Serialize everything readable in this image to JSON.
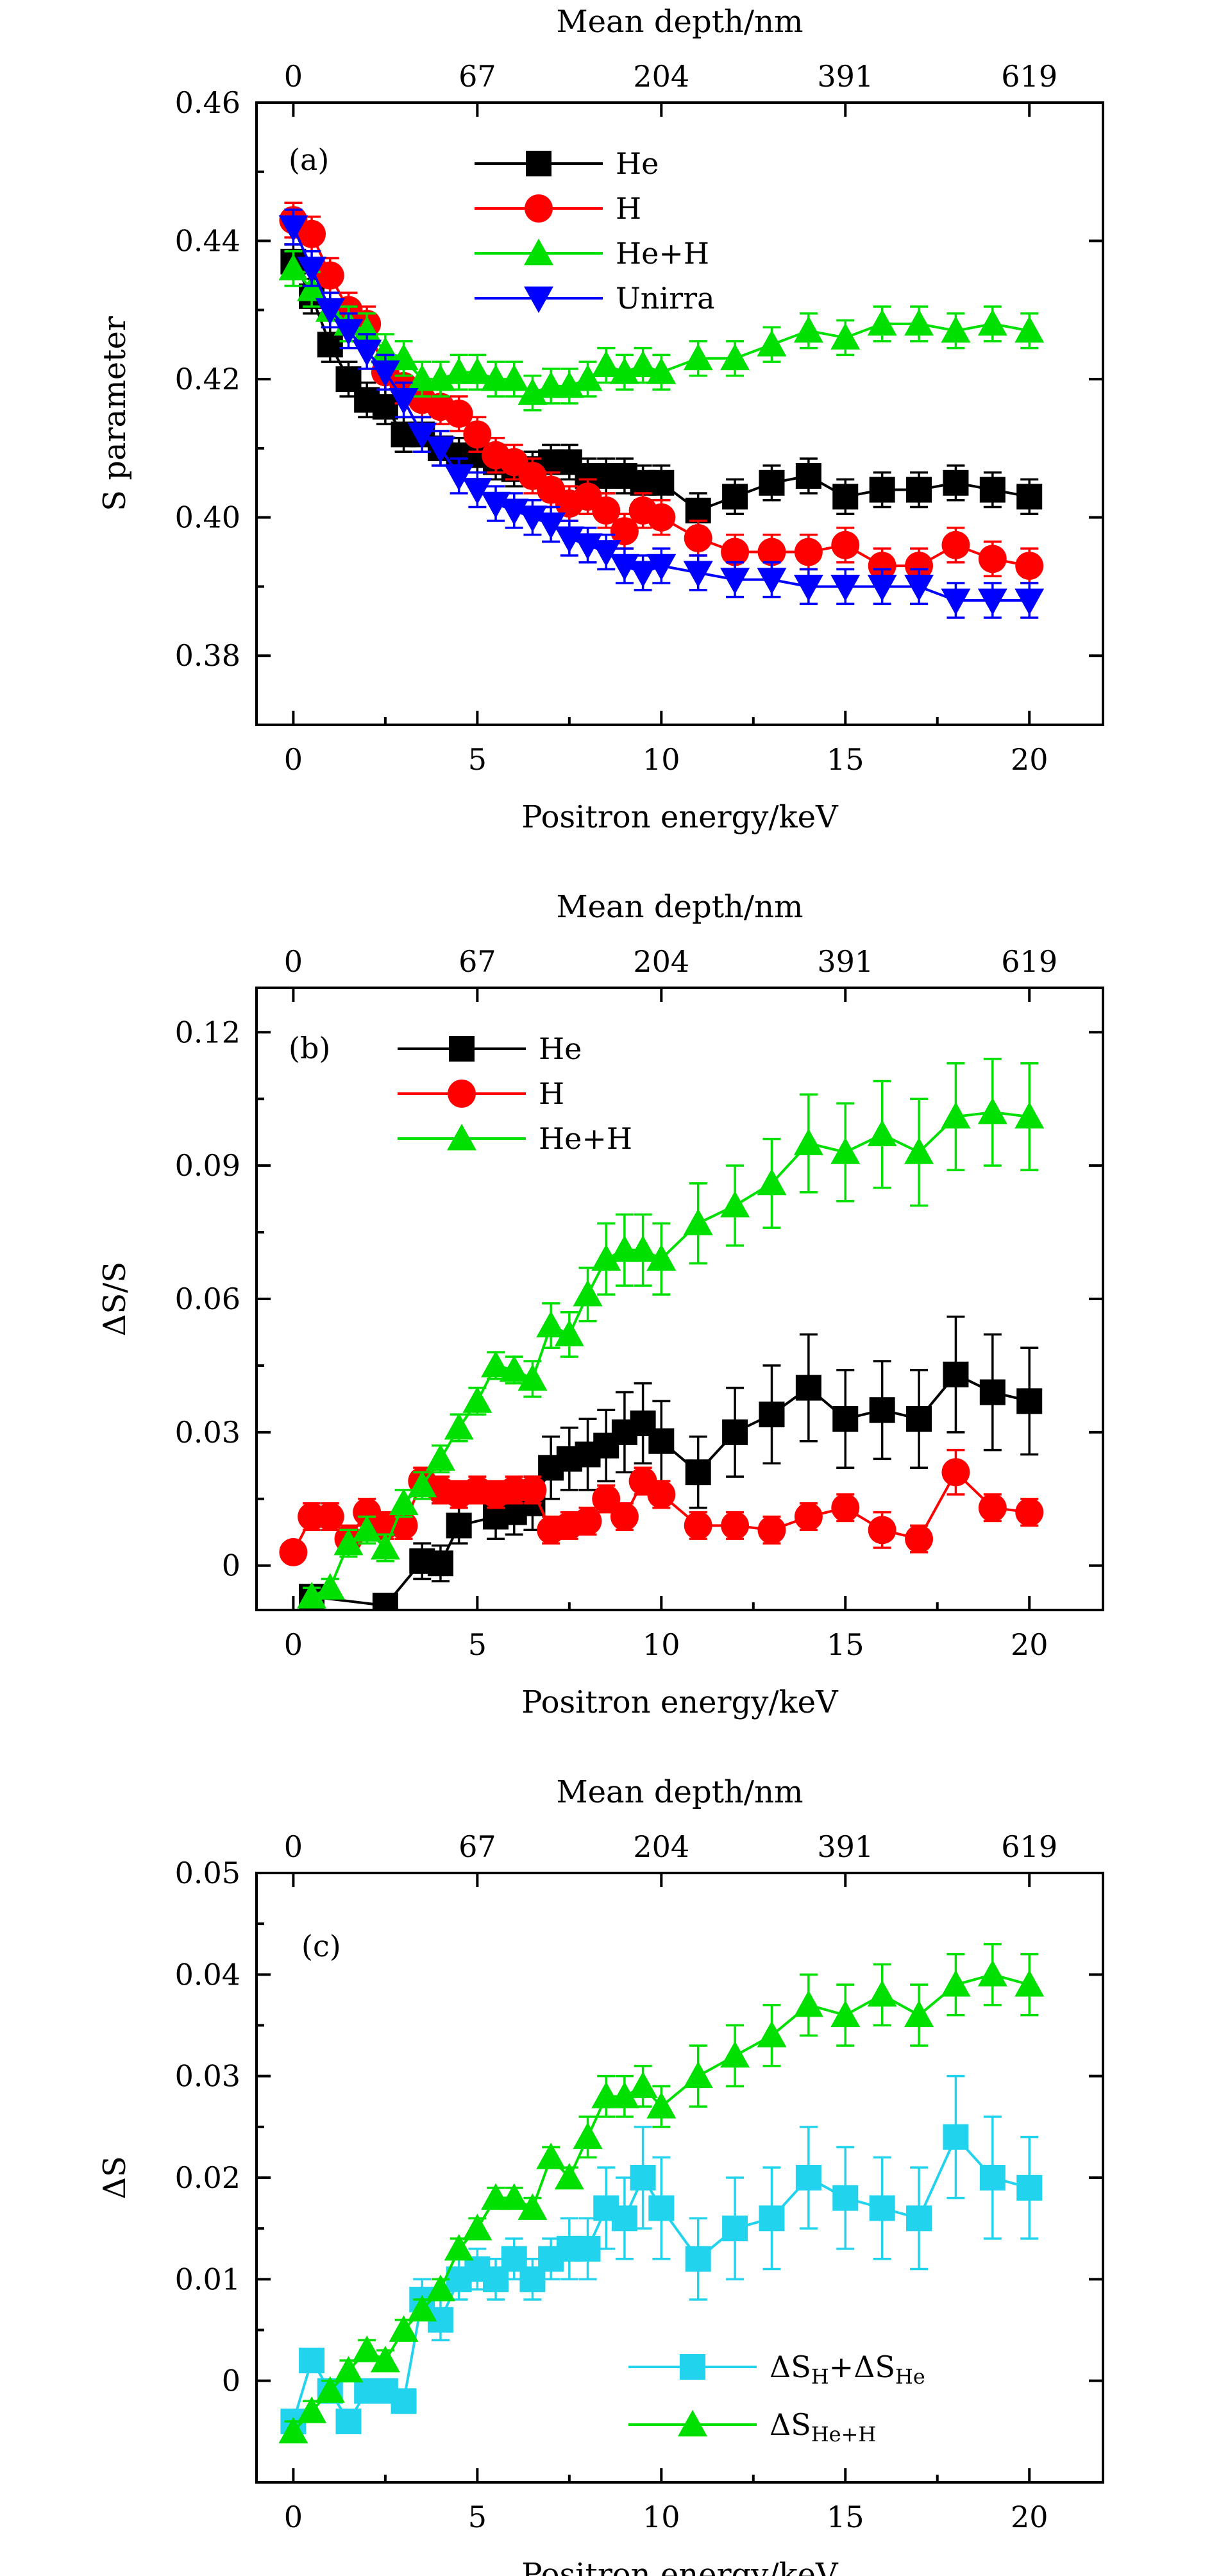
{
  "chart_data": [
    {
      "panel_label": "(a)",
      "type": "line",
      "xlabel": "Positron energy/keV",
      "ylabel": "S parameter",
      "top_xlabel": "Mean depth/nm",
      "top_ticks": [
        {
          "energy": 0,
          "label": "0"
        },
        {
          "energy": 5,
          "label": "67"
        },
        {
          "energy": 10,
          "label": "204"
        },
        {
          "energy": 15,
          "label": "391"
        },
        {
          "energy": 20,
          "label": "619"
        }
      ],
      "xlim": [
        -1,
        22
      ],
      "ylim": [
        0.37,
        0.46
      ],
      "xticks": [
        0,
        5,
        10,
        15,
        20
      ],
      "yticks": [
        0.38,
        0.4,
        0.42,
        0.44,
        0.46
      ],
      "ytick_labels": [
        "0.38",
        "0.40",
        "0.42",
        "0.44",
        "0.46"
      ],
      "legend_position": "top-center",
      "x": [
        0,
        0.5,
        1,
        1.5,
        2,
        2.5,
        3,
        3.5,
        4,
        4.5,
        5,
        5.5,
        6,
        6.5,
        7,
        7.5,
        8,
        8.5,
        9,
        9.5,
        10,
        11,
        12,
        13,
        14,
        15,
        16,
        17,
        18,
        19,
        20
      ],
      "series": [
        {
          "name": "He",
          "color": "#000000",
          "marker": "square",
          "err": 0.0025,
          "values": [
            0.437,
            0.432,
            0.425,
            0.42,
            0.417,
            0.416,
            0.412,
            0.412,
            0.41,
            0.409,
            0.409,
            0.408,
            0.407,
            0.407,
            0.408,
            0.408,
            0.406,
            0.406,
            0.406,
            0.405,
            0.405,
            0.401,
            0.403,
            0.405,
            0.406,
            0.403,
            0.404,
            0.404,
            0.405,
            0.404,
            0.403
          ]
        },
        {
          "name": "H",
          "color": "#ff0000",
          "marker": "circle",
          "err": 0.0025,
          "values": [
            0.443,
            0.441,
            0.435,
            0.43,
            0.428,
            0.421,
            0.419,
            0.417,
            0.416,
            0.415,
            0.412,
            0.409,
            0.408,
            0.406,
            0.404,
            0.402,
            0.403,
            0.401,
            0.398,
            0.401,
            0.4,
            0.397,
            0.395,
            0.395,
            0.395,
            0.396,
            0.393,
            0.393,
            0.396,
            0.394,
            0.393
          ]
        },
        {
          "name": "He+H",
          "color": "#00e000",
          "marker": "triangle-up",
          "err": 0.0025,
          "values": [
            0.436,
            0.433,
            0.43,
            0.428,
            0.427,
            0.424,
            0.423,
            0.42,
            0.42,
            0.421,
            0.421,
            0.42,
            0.42,
            0.418,
            0.419,
            0.419,
            0.42,
            0.422,
            0.421,
            0.422,
            0.421,
            0.423,
            0.423,
            0.425,
            0.427,
            0.426,
            0.428,
            0.428,
            0.427,
            0.428,
            0.427
          ]
        },
        {
          "name": "Unirra",
          "color": "#0000ff",
          "marker": "triangle-down",
          "err": 0.0025,
          "values": [
            0.442,
            0.436,
            0.43,
            0.427,
            0.424,
            0.421,
            0.417,
            0.412,
            0.41,
            0.406,
            0.404,
            0.402,
            0.401,
            0.4,
            0.399,
            0.397,
            0.396,
            0.395,
            0.393,
            0.392,
            0.393,
            0.392,
            0.391,
            0.391,
            0.39,
            0.39,
            0.39,
            0.39,
            0.388,
            0.388,
            0.388
          ]
        }
      ]
    },
    {
      "panel_label": "(b)",
      "type": "line",
      "xlabel": "Positron energy/keV",
      "ylabel": "ΔS/S",
      "top_xlabel": "Mean depth/nm",
      "top_ticks": [
        {
          "energy": 0,
          "label": "0"
        },
        {
          "energy": 5,
          "label": "67"
        },
        {
          "energy": 10,
          "label": "204"
        },
        {
          "energy": 15,
          "label": "391"
        },
        {
          "energy": 20,
          "label": "619"
        }
      ],
      "xlim": [
        -1,
        22
      ],
      "ylim": [
        -0.01,
        0.13
      ],
      "xticks": [
        0,
        5,
        10,
        15,
        20
      ],
      "yticks": [
        0,
        0.03,
        0.06,
        0.09,
        0.12
      ],
      "ytick_labels": [
        "0",
        "0.03",
        "0.06",
        "0.09",
        "0.12"
      ],
      "legend_position": "top-left",
      "series": [
        {
          "name": "He",
          "color": "#000000",
          "marker": "square",
          "x": [
            0.5,
            2.5,
            3.5,
            4,
            4.5,
            5.5,
            6,
            6.5,
            7,
            7.5,
            8,
            8.5,
            9,
            9.5,
            10,
            11,
            12,
            13,
            14,
            15,
            16,
            17,
            18,
            19,
            20
          ],
          "values": [
            -0.007,
            -0.009,
            0.001,
            0.0005,
            0.009,
            0.011,
            0.012,
            0.014,
            0.022,
            0.024,
            0.025,
            0.027,
            0.03,
            0.032,
            0.028,
            0.021,
            0.03,
            0.034,
            0.04,
            0.033,
            0.035,
            0.033,
            0.043,
            0.039,
            0.037
          ],
          "err": [
            0.002,
            0.002,
            0.004,
            0.004,
            0.004,
            0.005,
            0.005,
            0.006,
            0.007,
            0.007,
            0.008,
            0.008,
            0.009,
            0.009,
            0.009,
            0.008,
            0.01,
            0.011,
            0.012,
            0.011,
            0.011,
            0.011,
            0.013,
            0.013,
            0.012
          ]
        },
        {
          "name": "H",
          "color": "#ff0000",
          "marker": "circle",
          "x": [
            0,
            0.5,
            1,
            1.5,
            2,
            2.5,
            3,
            3.5,
            4,
            4.5,
            5,
            5.5,
            6,
            6.5,
            7,
            7.5,
            8,
            8.5,
            9,
            9.5,
            10,
            11,
            12,
            13,
            14,
            15,
            16,
            17,
            18,
            19,
            20
          ],
          "values": [
            0.003,
            0.011,
            0.011,
            0.006,
            0.012,
            0.009,
            0.009,
            0.019,
            0.017,
            0.016,
            0.017,
            0.016,
            0.017,
            0.017,
            0.008,
            0.009,
            0.01,
            0.015,
            0.011,
            0.019,
            0.016,
            0.009,
            0.009,
            0.008,
            0.011,
            0.013,
            0.008,
            0.006,
            0.021,
            0.013,
            0.012
          ],
          "err": [
            0.002,
            0.003,
            0.003,
            0.003,
            0.003,
            0.003,
            0.003,
            0.003,
            0.003,
            0.003,
            0.003,
            0.003,
            0.003,
            0.003,
            0.003,
            0.003,
            0.003,
            0.003,
            0.003,
            0.003,
            0.003,
            0.003,
            0.003,
            0.003,
            0.003,
            0.003,
            0.004,
            0.003,
            0.005,
            0.003,
            0.003
          ]
        },
        {
          "name": "He+H",
          "color": "#00e000",
          "marker": "triangle-up",
          "x": [
            0.5,
            1,
            1.5,
            2,
            2.5,
            3,
            3.5,
            4,
            4.5,
            5,
            5.5,
            6,
            6.5,
            7,
            7.5,
            8,
            8.5,
            9,
            9.5,
            10,
            11,
            12,
            13,
            14,
            15,
            16,
            17,
            18,
            19,
            20
          ],
          "values": [
            -0.007,
            -0.005,
            0.005,
            0.008,
            0.004,
            0.014,
            0.018,
            0.024,
            0.031,
            0.037,
            0.045,
            0.044,
            0.042,
            0.054,
            0.052,
            0.061,
            0.069,
            0.071,
            0.071,
            0.069,
            0.077,
            0.081,
            0.086,
            0.095,
            0.093,
            0.097,
            0.093,
            0.101,
            0.102,
            0.101
          ],
          "err": [
            0.002,
            0.002,
            0.003,
            0.003,
            0.003,
            0.003,
            0.003,
            0.003,
            0.003,
            0.003,
            0.003,
            0.003,
            0.004,
            0.005,
            0.005,
            0.006,
            0.008,
            0.008,
            0.008,
            0.008,
            0.009,
            0.009,
            0.01,
            0.011,
            0.011,
            0.012,
            0.012,
            0.012,
            0.012,
            0.012
          ]
        }
      ]
    },
    {
      "panel_label": "(c)",
      "type": "line",
      "xlabel": "Positron energy/keV",
      "ylabel": "ΔS",
      "top_xlabel": "Mean depth/nm",
      "top_ticks": [
        {
          "energy": 0,
          "label": "0"
        },
        {
          "energy": 5,
          "label": "67"
        },
        {
          "energy": 10,
          "label": "204"
        },
        {
          "energy": 15,
          "label": "391"
        },
        {
          "energy": 20,
          "label": "619"
        }
      ],
      "xlim": [
        -1,
        22
      ],
      "ylim": [
        -0.01,
        0.05
      ],
      "xticks": [
        0,
        5,
        10,
        15,
        20
      ],
      "yticks": [
        0,
        0.01,
        0.02,
        0.03,
        0.04,
        0.05
      ],
      "ytick_labels": [
        "0",
        "0.01",
        "0.02",
        "0.03",
        "0.04",
        "0.05"
      ],
      "legend_position": "bottom-right",
      "series": [
        {
          "name": "ΔS_H+ΔS_He",
          "legend": {
            "a": "ΔS",
            "sub_a": "H",
            "plus": "+",
            "b": "ΔS",
            "sub_b": "He"
          },
          "color": "#22d3ee",
          "marker": "square",
          "x": [
            0,
            0.5,
            1,
            1.5,
            2,
            2.5,
            3,
            3.5,
            4,
            4.5,
            5,
            5.5,
            6,
            6.5,
            7,
            7.5,
            8,
            8.5,
            9,
            9.5,
            10,
            11,
            12,
            13,
            14,
            15,
            16,
            17,
            18,
            19,
            20
          ],
          "values": [
            -0.004,
            0.002,
            -0.001,
            -0.004,
            -0.001,
            -0.001,
            -0.002,
            0.008,
            0.006,
            0.01,
            0.011,
            0.01,
            0.012,
            0.01,
            0.012,
            0.013,
            0.013,
            0.017,
            0.016,
            0.02,
            0.017,
            0.012,
            0.015,
            0.016,
            0.02,
            0.018,
            0.017,
            0.016,
            0.024,
            0.02,
            0.019
          ],
          "err": [
            0.001,
            0.001,
            0.001,
            0.001,
            0.001,
            0.001,
            0.001,
            0.002,
            0.002,
            0.002,
            0.002,
            0.002,
            0.002,
            0.002,
            0.002,
            0.003,
            0.003,
            0.004,
            0.004,
            0.005,
            0.005,
            0.004,
            0.005,
            0.005,
            0.005,
            0.005,
            0.005,
            0.005,
            0.006,
            0.006,
            0.005
          ]
        },
        {
          "name": "ΔS_He+H",
          "legend": {
            "a": "ΔS",
            "sub_a": "He+H"
          },
          "color": "#00e000",
          "marker": "triangle-up",
          "x": [
            0,
            0.5,
            1,
            1.5,
            2,
            2.5,
            3,
            3.5,
            4,
            4.5,
            5,
            5.5,
            6,
            6.5,
            7,
            7.5,
            8,
            8.5,
            9,
            9.5,
            10,
            11,
            12,
            13,
            14,
            15,
            16,
            17,
            18,
            19,
            20
          ],
          "values": [
            -0.005,
            -0.003,
            -0.001,
            0.001,
            0.003,
            0.002,
            0.005,
            0.007,
            0.009,
            0.013,
            0.015,
            0.018,
            0.018,
            0.017,
            0.022,
            0.02,
            0.024,
            0.028,
            0.028,
            0.029,
            0.027,
            0.03,
            0.032,
            0.034,
            0.037,
            0.036,
            0.038,
            0.036,
            0.039,
            0.04,
            0.039
          ],
          "err": [
            0.001,
            0.001,
            0.001,
            0.001,
            0.001,
            0.001,
            0.001,
            0.001,
            0.001,
            0.001,
            0.001,
            0.001,
            0.001,
            0.001,
            0.001,
            0.001,
            0.002,
            0.002,
            0.002,
            0.002,
            0.002,
            0.003,
            0.003,
            0.003,
            0.003,
            0.003,
            0.003,
            0.003,
            0.003,
            0.003,
            0.003
          ]
        }
      ]
    }
  ]
}
